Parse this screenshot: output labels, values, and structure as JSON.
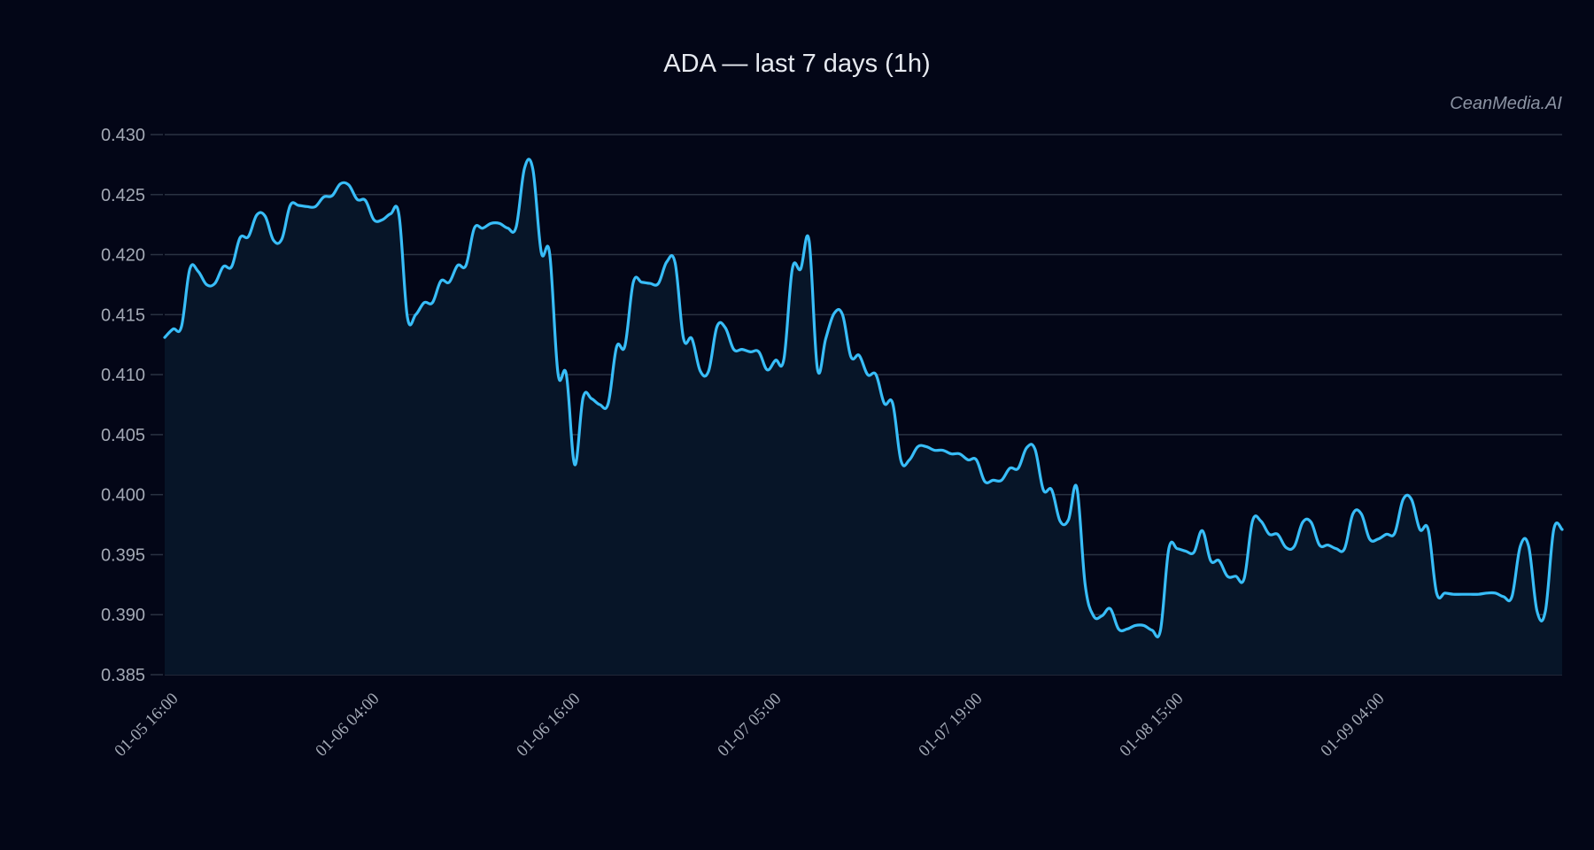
{
  "chart_data": {
    "type": "line",
    "title": "ADA — last 7 days (1h)",
    "watermark": "CeanMedia.AI",
    "xlabel": "",
    "ylabel": "",
    "ylim": [
      0.385,
      0.43
    ],
    "yticks": [
      "0.385",
      "0.390",
      "0.395",
      "0.400",
      "0.405",
      "0.410",
      "0.415",
      "0.420",
      "0.425",
      "0.430"
    ],
    "xtick_labels": [
      "01-05 16:00",
      "01-06 04:00",
      "01-06 16:00",
      "01-07 05:00",
      "01-07 19:00",
      "01-08 15:00",
      "01-09 04:00"
    ],
    "grid": true,
    "line_color": "#38bdf8",
    "fill_color": "#071528",
    "background": "#030617",
    "series": [
      {
        "name": "ADA",
        "values": [
          0.4131,
          0.4138,
          0.414,
          0.4188,
          0.4186,
          0.4175,
          0.4176,
          0.419,
          0.419,
          0.4214,
          0.4215,
          0.4233,
          0.4232,
          0.4212,
          0.4213,
          0.4241,
          0.4241,
          0.424,
          0.424,
          0.4248,
          0.4249,
          0.4259,
          0.4258,
          0.4246,
          0.4245,
          0.4229,
          0.4229,
          0.4234,
          0.4233,
          0.4148,
          0.415,
          0.416,
          0.416,
          0.4178,
          0.4177,
          0.4191,
          0.4191,
          0.4222,
          0.4222,
          0.4226,
          0.4226,
          0.4222,
          0.4223,
          0.4272,
          0.4271,
          0.4202,
          0.4201,
          0.4101,
          0.41,
          0.4025,
          0.4081,
          0.408,
          0.4075,
          0.4076,
          0.4123,
          0.4124,
          0.4177,
          0.4177,
          0.4176,
          0.4176,
          0.4194,
          0.4193,
          0.413,
          0.413,
          0.4103,
          0.4103,
          0.414,
          0.4139,
          0.4121,
          0.4121,
          0.4119,
          0.4119,
          0.4104,
          0.4112,
          0.4113,
          0.4188,
          0.4188,
          0.4212,
          0.4105,
          0.413,
          0.4151,
          0.415,
          0.4115,
          0.4116,
          0.41,
          0.41,
          0.4076,
          0.4076,
          0.4028,
          0.4029,
          0.404,
          0.404,
          0.4037,
          0.4037,
          0.4034,
          0.4034,
          0.4029,
          0.4029,
          0.4011,
          0.4012,
          0.4012,
          0.4022,
          0.4022,
          0.4039,
          0.4038,
          0.4004,
          0.4004,
          0.3978,
          0.3979,
          0.4006,
          0.3925,
          0.3899,
          0.3899,
          0.3905,
          0.3888,
          0.3888,
          0.3891,
          0.3891,
          0.3887,
          0.3887,
          0.3955,
          0.3955,
          0.3953,
          0.3952,
          0.397,
          0.3945,
          0.3945,
          0.3932,
          0.3932,
          0.393,
          0.3978,
          0.3978,
          0.3967,
          0.3967,
          0.3956,
          0.3957,
          0.3977,
          0.3977,
          0.3958,
          0.3958,
          0.3955,
          0.3955,
          0.3984,
          0.3984,
          0.3963,
          0.3963,
          0.3967,
          0.3968,
          0.3996,
          0.3996,
          0.3971,
          0.3971,
          0.3918,
          0.3918,
          0.3917,
          0.3917,
          0.3917,
          0.3917,
          0.3918,
          0.3918,
          0.3915,
          0.3915,
          0.3957,
          0.3957,
          0.3903,
          0.3903,
          0.3971,
          0.3971
        ]
      }
    ]
  }
}
